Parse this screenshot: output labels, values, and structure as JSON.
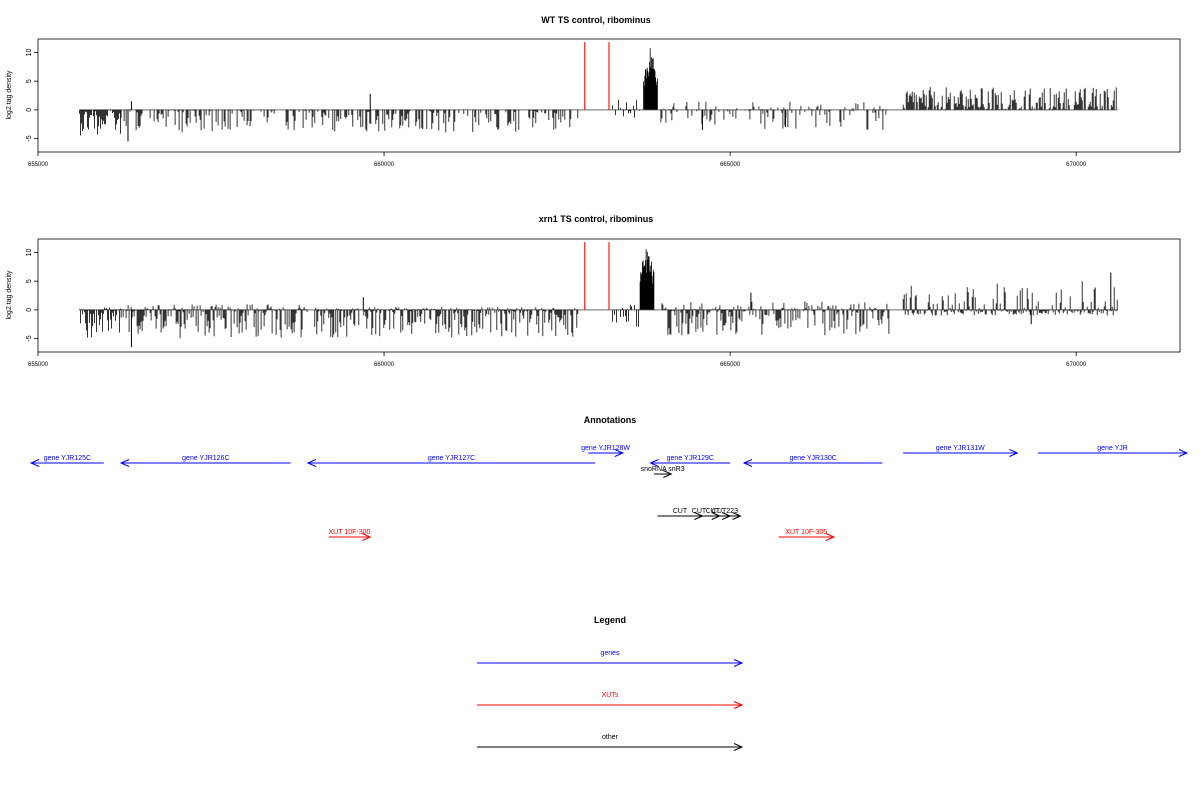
{
  "chart_data": [
    {
      "type": "bar",
      "title": "WT TS control, ribominus",
      "xlabel": "",
      "ylabel": "log2 tag density",
      "xlim": [
        655000,
        671500
      ],
      "ylim": [
        -7,
        12
      ],
      "xticks": [
        655000,
        660000,
        665000,
        670000
      ],
      "yticks": [
        -5,
        0,
        5,
        10
      ],
      "xtick_labels": [
        "655000",
        "660000",
        "665000",
        "670000"
      ],
      "ytick_labels": [
        "-5",
        "0",
        "5",
        "10"
      ],
      "baseline": [
        655600,
        670600
      ],
      "segments": [
        {
          "start": 655600,
          "end": 656200,
          "min": -4.5,
          "max": 0,
          "density": 0.9
        },
        {
          "start": 656200,
          "end": 659000,
          "min": -4.0,
          "max": 0,
          "density": 0.55
        },
        {
          "start": 659000,
          "end": 662800,
          "min": -4.0,
          "max": 0,
          "density": 0.5
        },
        {
          "start": 663300,
          "end": 663700,
          "min": -1.5,
          "max": 2.5,
          "density": 0.7
        },
        {
          "start": 664000,
          "end": 667300,
          "min": -3.5,
          "max": 1.5,
          "density": 0.5
        },
        {
          "start": 667500,
          "end": 670600,
          "min": 0,
          "max": 4.0,
          "density": 0.8
        }
      ],
      "spikes": [
        {
          "x": 656300,
          "y": -5.5
        },
        {
          "x": 656350,
          "y": 1.5
        },
        {
          "x": 659800,
          "y": 2.8
        },
        {
          "x": 664600,
          "y": -3.5
        },
        {
          "x": 665800,
          "y": -3.0
        }
      ],
      "peak": {
        "start": 663750,
        "end": 663950,
        "max": 11.5
      },
      "markers": [
        662900,
        663250
      ],
      "marker_top": 11.8
    },
    {
      "type": "bar",
      "title": "xrn1 TS control, ribominus",
      "xlabel": "",
      "ylabel": "log2 tag density",
      "xlim": [
        655000,
        671500
      ],
      "ylim": [
        -7,
        12
      ],
      "xticks": [
        655000,
        660000,
        665000,
        670000
      ],
      "yticks": [
        -5,
        0,
        5,
        10
      ],
      "xtick_labels": [
        "655000",
        "660000",
        "665000",
        "670000"
      ],
      "ytick_labels": [
        "-5",
        "0",
        "5",
        "10"
      ],
      "baseline": [
        655600,
        670600
      ],
      "segments": [
        {
          "start": 655600,
          "end": 656200,
          "min": -5.5,
          "max": 0.5,
          "density": 1.0
        },
        {
          "start": 656200,
          "end": 658900,
          "min": -5.0,
          "max": 1.0,
          "density": 0.95
        },
        {
          "start": 659000,
          "end": 662800,
          "min": -5.0,
          "max": 0.5,
          "density": 0.95
        },
        {
          "start": 663300,
          "end": 663700,
          "min": -3.0,
          "max": 1.5,
          "density": 0.9
        },
        {
          "start": 664000,
          "end": 667300,
          "min": -4.5,
          "max": 1.5,
          "density": 0.9
        },
        {
          "start": 667500,
          "end": 670600,
          "min": -1.0,
          "max": 5.0,
          "density": 1.0
        }
      ],
      "spikes": [
        {
          "x": 656350,
          "y": -6.5
        },
        {
          "x": 659700,
          "y": 2.2
        },
        {
          "x": 665300,
          "y": 3.0
        },
        {
          "x": 669350,
          "y": -2.5
        },
        {
          "x": 670500,
          "y": 6.5
        }
      ],
      "peak": {
        "start": 663700,
        "end": 663900,
        "max": 11.5
      },
      "markers": [
        662900,
        663250
      ],
      "marker_top": 11.8
    }
  ],
  "annotations": {
    "title": "Annotations",
    "xlim": [
      655000,
      671500
    ],
    "items": [
      {
        "label": "gene YJR125C",
        "start": 654900,
        "end": 655950,
        "strand": "-",
        "row": 1,
        "color": "#0000ff"
      },
      {
        "label": "gene YJR126C",
        "start": 656200,
        "end": 658650,
        "strand": "-",
        "row": 1,
        "color": "#0000ff"
      },
      {
        "label": "gene YJR127C",
        "start": 658900,
        "end": 663050,
        "strand": "-",
        "row": 1,
        "color": "#0000ff"
      },
      {
        "label": "gene YJR128W",
        "start": 662950,
        "end": 663450,
        "strand": "+",
        "row": 0,
        "color": "#0000ff"
      },
      {
        "label": "gene YJR129C",
        "start": 663850,
        "end": 665000,
        "strand": "-",
        "row": 1,
        "color": "#0000ff"
      },
      {
        "label": "snoRNA snR3",
        "start": 663900,
        "end": 664150,
        "strand": "+",
        "row": 2,
        "color": "#000000"
      },
      {
        "label": "gene YJR130C",
        "start": 665200,
        "end": 667200,
        "strand": "-",
        "row": 1,
        "color": "#0000ff"
      },
      {
        "label": "gene YJR131W",
        "start": 667500,
        "end": 669150,
        "strand": "+",
        "row": 0,
        "color": "#0000ff"
      },
      {
        "label": "gene YJR",
        "start": 669450,
        "end": 671600,
        "strand": "+",
        "row": 0,
        "color": "#0000ff"
      },
      {
        "label": "CUT",
        "start": 663950,
        "end": 664600,
        "strand": "+",
        "row": 3,
        "color": "#000000"
      },
      {
        "label": "CUT",
        "start": 664250,
        "end": 664850,
        "strand": "+",
        "row": 3,
        "color": "#000000"
      },
      {
        "label": "CUT",
        "start": 664500,
        "end": 665000,
        "strand": "+",
        "row": 3,
        "color": "#000000"
      },
      {
        "label": "CUT223",
        "start": 664700,
        "end": 665150,
        "strand": "+",
        "row": 3,
        "color": "#000000"
      },
      {
        "label": "XUT 10F-300",
        "start": 659200,
        "end": 659800,
        "strand": "+",
        "row": 4,
        "color": "#ff0000"
      },
      {
        "label": "XUT 10F-305",
        "start": 665700,
        "end": 666500,
        "strand": "+",
        "row": 4,
        "color": "#ff0000"
      }
    ]
  },
  "legend": {
    "title": "Legend",
    "items": [
      {
        "label": "genes",
        "color": "#0000ff"
      },
      {
        "label": "XUTs",
        "color": "#ff0000"
      },
      {
        "label": "other",
        "color": "#000000"
      }
    ]
  }
}
